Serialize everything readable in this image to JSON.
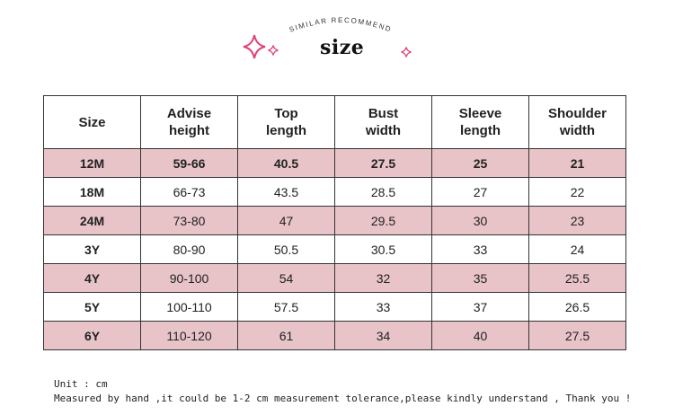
{
  "header": {
    "arc_text": "SIMILAR RECOMMEND",
    "title": "size",
    "accent_color": "#e0407a"
  },
  "table": {
    "columns": [
      "Size",
      "Advise height",
      "Top length",
      "Bust width",
      "Sleeve length",
      "Shoulder width"
    ],
    "rows": [
      [
        "12M",
        "59-66",
        "40.5",
        "27.5",
        "25",
        "21"
      ],
      [
        "18M",
        "66-73",
        "43.5",
        "28.5",
        "27",
        "22"
      ],
      [
        "24M",
        "73-80",
        "47",
        "29.5",
        "30",
        "23"
      ],
      [
        "3Y",
        "80-90",
        "50.5",
        "30.5",
        "33",
        "24"
      ],
      [
        "4Y",
        "90-100",
        "54",
        "32",
        "35",
        "25.5"
      ],
      [
        "5Y",
        "100-110",
        "57.5",
        "33",
        "37",
        "26.5"
      ],
      [
        "6Y",
        "110-120",
        "61",
        "34",
        "40",
        "27.5"
      ]
    ],
    "row_fill": "#e8c4c9"
  },
  "notes": {
    "unit": "Unit : cm",
    "disclaimer": "Measured by hand ,it could be 1-2 cm measurement tolerance,please kindly understand , Thank you !"
  }
}
